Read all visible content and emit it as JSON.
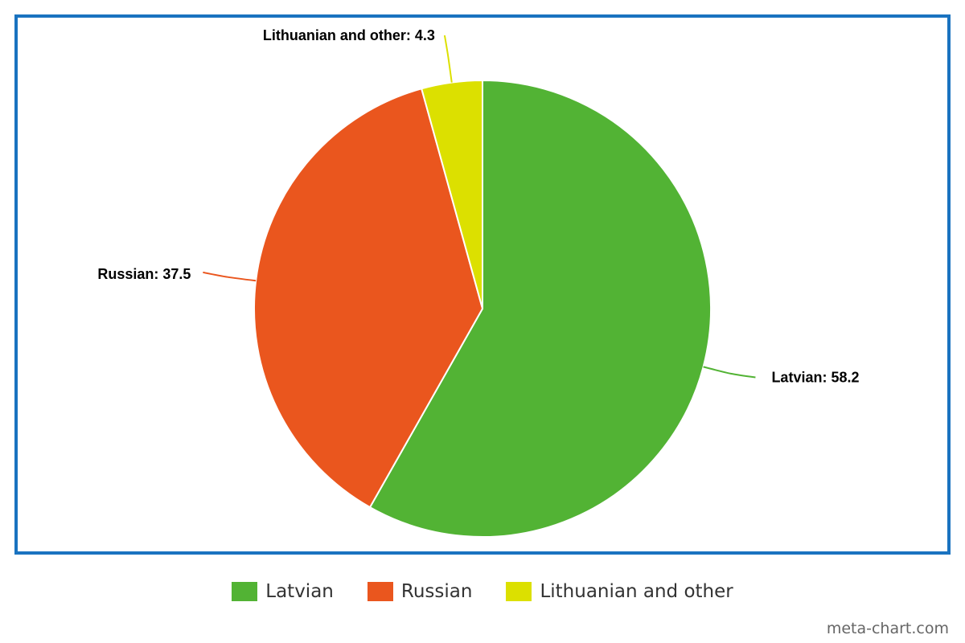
{
  "chart_data": {
    "type": "pie",
    "title": "",
    "slices": [
      {
        "label": "Latvian",
        "value": 58.2,
        "color": "#52b334",
        "display": "Latvian: 58.2"
      },
      {
        "label": "Russian",
        "value": 37.5,
        "color": "#ea561e",
        "display": "Russian: 37.5"
      },
      {
        "label": "Lithuanian and other",
        "value": 4.3,
        "color": "#dce000",
        "display": "Lithuanian and other: 4.3"
      }
    ],
    "legend_position": "bottom"
  },
  "legend": {
    "items": [
      {
        "label": "Latvian",
        "color": "#52b334"
      },
      {
        "label": "Russian",
        "color": "#ea561e"
      },
      {
        "label": "Lithuanian and other",
        "color": "#dce000"
      }
    ]
  },
  "frame_color": "#1a73c0",
  "watermark": "meta-chart.com"
}
